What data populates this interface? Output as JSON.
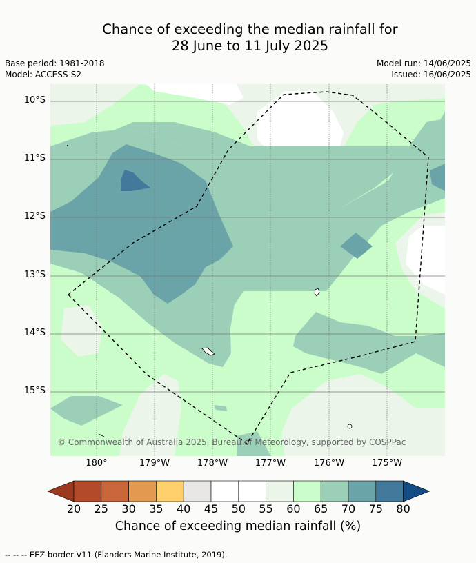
{
  "title": {
    "line1": "Chance of exceeding the median rainfall for",
    "line2": "28 June to 11 July 2025"
  },
  "info": {
    "base_period": "Base period: 1981-2018",
    "model": "Model: ACCESS-S2",
    "model_run": "Model run: 14/06/2025",
    "issued": "Issued: 16/06/2025"
  },
  "map": {
    "lat_labels": [
      "10°S",
      "11°S",
      "12°S",
      "13°S",
      "14°S",
      "15°S"
    ],
    "lon_labels": [
      "180°",
      "179°W",
      "178°W",
      "177°W",
      "176°W",
      "175°W"
    ],
    "copyright": "© Commonwealth of Australia 2025, Bureau of Meteorology, supported by COSPPac"
  },
  "legend": {
    "ticks": [
      "20",
      "25",
      "30",
      "35",
      "40",
      "45",
      "50",
      "55",
      "60",
      "65",
      "70",
      "75",
      "80"
    ],
    "colors": [
      "#9c3a1f",
      "#b34a2a",
      "#c9663a",
      "#e19a50",
      "#fecf6b",
      "#e9e7e4",
      "#ffffff",
      "#ffffff",
      "#ebf5ea",
      "#cbfdca",
      "#9ccfb8",
      "#6aa4a8",
      "#437a9b",
      "#134c84"
    ],
    "title": "Chance of exceeding median rainfall (%)"
  },
  "footer": "--  --  -- EEZ border V11 (Flanders Marine Institute, 2019)."
}
